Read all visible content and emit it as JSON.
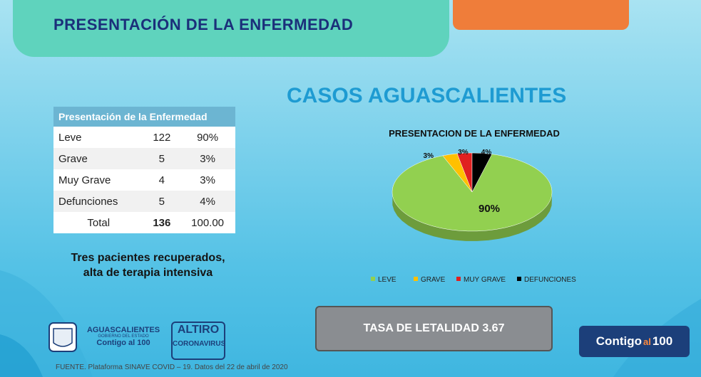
{
  "header": {
    "title": "PRESENTACIÓN DE LA ENFERMEDAD"
  },
  "subtitle": "CASOS AGUASCALIENTES",
  "table": {
    "header": "Presentación de la Enfermedad",
    "rows": [
      {
        "label": "Leve",
        "count": "122",
        "pct": "90%"
      },
      {
        "label": "Grave",
        "count": "5",
        "pct": "3%"
      },
      {
        "label": "Muy Grave",
        "count": "4",
        "pct": "3%"
      },
      {
        "label": "Defunciones",
        "count": "5",
        "pct": "4%"
      }
    ],
    "total": {
      "label": "Total",
      "count": "136",
      "pct": "100.00"
    }
  },
  "note": {
    "line1": "Tres pacientes recuperados,",
    "line2": "alta de terapia intensiva"
  },
  "tasa": "TASA DE LETALIDAD 3.67",
  "footer": "FUENTE. Plataforma SINAVE COVID – 19. Datos del 22 de abril de 2020",
  "logos": {
    "state": "AGUASCALIENTES",
    "gov": "GOBIERNO DEL ESTADO",
    "slogan": "Contigo al 100",
    "altiro": "ALTIRO",
    "corona": "CORONAVIRUS"
  },
  "badge": {
    "part1": "Contigo",
    "part2": "al",
    "part3": "100"
  },
  "chart_data": {
    "type": "pie",
    "title": "PRESENTACION DE LA ENFERMEDAD",
    "categories": [
      "LEVE",
      "GRAVE",
      "MUY GRAVE",
      "DEFUNCIONES"
    ],
    "values": [
      90,
      3,
      3,
      4
    ],
    "labels": [
      "90%",
      "3%",
      "3%",
      "4%"
    ],
    "colors": [
      "#92d050",
      "#ffc000",
      "#e02020",
      "#000000"
    ],
    "legend": "bottom"
  }
}
